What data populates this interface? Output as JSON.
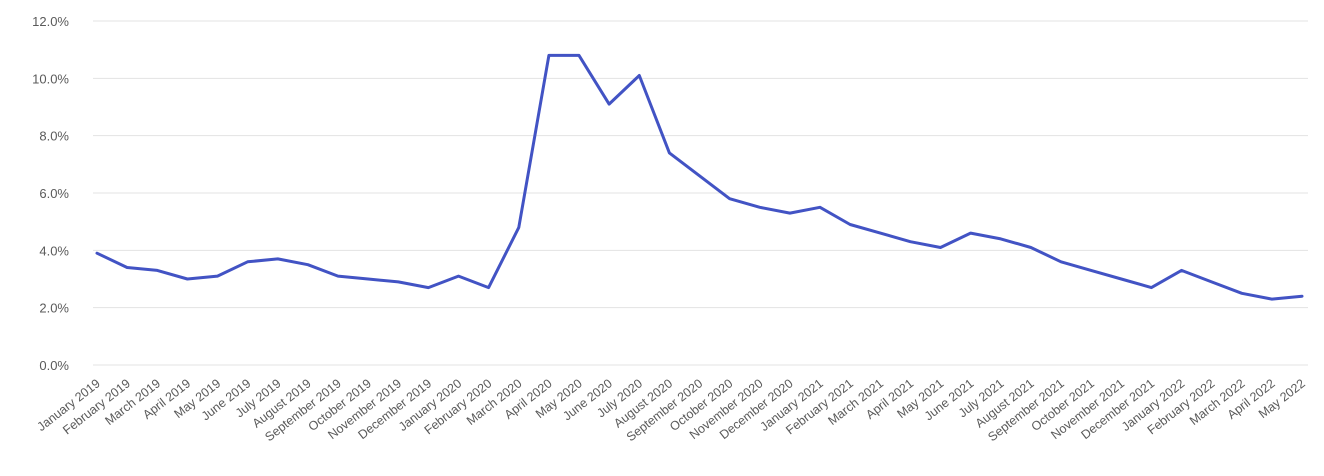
{
  "chart_data": {
    "type": "line",
    "title": "",
    "xlabel": "",
    "ylabel": "",
    "ylim": [
      0,
      12
    ],
    "yticks": [
      0,
      2,
      4,
      6,
      8,
      10,
      12
    ],
    "ytick_format": "percent_1dp",
    "grid": true,
    "legend": "none",
    "line_color": "#4253c4",
    "grid_color": "#e3e3e3",
    "categories": [
      "January 2019",
      "February 2019",
      "March 2019",
      "April 2019",
      "May 2019",
      "June 2019",
      "July 2019",
      "August 2019",
      "September 2019",
      "October 2019",
      "November 2019",
      "December 2019",
      "January 2020",
      "February 2020",
      "March 2020",
      "April 2020",
      "May 2020",
      "June 2020",
      "July 2020",
      "August 2020",
      "September 2020",
      "October 2020",
      "November 2020",
      "December 2020",
      "January 2021",
      "February 2021",
      "March 2021",
      "April 2021",
      "May 2021",
      "June 2021",
      "July 2021",
      "August 2021",
      "September 2021",
      "October 2021",
      "November 2021",
      "December 2021",
      "January 2022",
      "February 2022",
      "March 2022",
      "April 2022",
      "May 2022"
    ],
    "series": [
      {
        "values": [
          3.9,
          3.4,
          3.3,
          3.0,
          3.1,
          3.6,
          3.7,
          3.5,
          3.1,
          3.0,
          2.9,
          2.7,
          3.1,
          2.7,
          4.8,
          10.8,
          10.8,
          9.1,
          10.1,
          7.4,
          6.6,
          5.8,
          5.5,
          5.3,
          5.5,
          4.9,
          4.6,
          4.3,
          4.1,
          4.6,
          4.4,
          4.1,
          3.6,
          3.3,
          3.0,
          2.7,
          3.3,
          2.9,
          2.5,
          2.3,
          2.4
        ]
      }
    ]
  }
}
